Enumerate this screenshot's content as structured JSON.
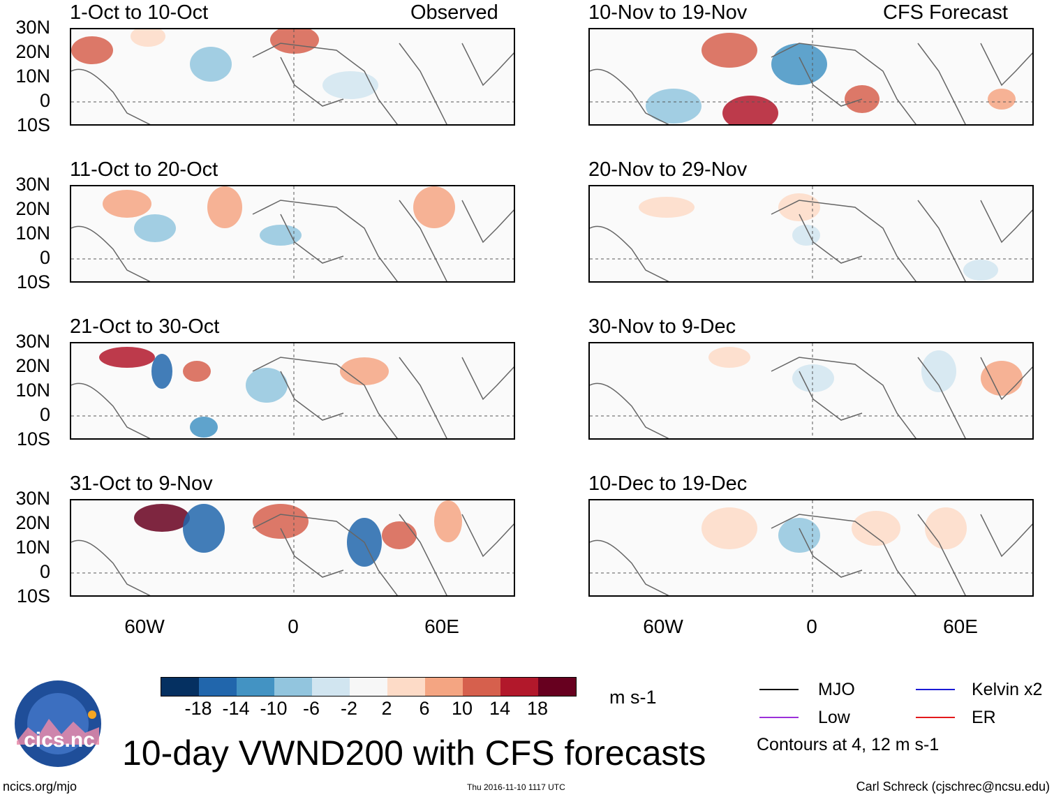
{
  "title": "10-day VWND200 with CFS forecasts",
  "left_column_label": "Observed",
  "right_column_label": "CFS Forecast",
  "panels_left": [
    {
      "period": "1-Oct to 10-Oct"
    },
    {
      "period": "11-Oct to 20-Oct"
    },
    {
      "period": "21-Oct to 30-Oct"
    },
    {
      "period": "31-Oct to 9-Nov"
    }
  ],
  "panels_right": [
    {
      "period": "10-Nov to 19-Nov"
    },
    {
      "period": "20-Nov to 29-Nov"
    },
    {
      "period": "30-Nov to 9-Dec"
    },
    {
      "period": "10-Dec to 19-Dec"
    }
  ],
  "y_ticks": [
    "30N",
    "20N",
    "10N",
    "0",
    "10S"
  ],
  "x_ticks": [
    "60W",
    "0",
    "60E"
  ],
  "colorbar": {
    "units": "m s-1",
    "labels": [
      "-18",
      "-14",
      "-10",
      "-6",
      "-2",
      "2",
      "6",
      "10",
      "14",
      "18"
    ],
    "colors": [
      "#053061",
      "#2166ac",
      "#4393c3",
      "#92c5de",
      "#d1e5f0",
      "#f7f7f7",
      "#fddbc7",
      "#f4a582",
      "#d6604d",
      "#b2182b",
      "#67001f"
    ]
  },
  "legend": {
    "items": [
      {
        "label": "MJO",
        "color": "#000000"
      },
      {
        "label": "Kelvin x2",
        "color": "#1a1ad6"
      },
      {
        "label": "Low",
        "color": "#9b30d9"
      },
      {
        "label": "ER",
        "color": "#e31a1c"
      }
    ],
    "note": "Contours at 4, 12 m s-1"
  },
  "logo": {
    "text": "cics.nc",
    "ring_text": "Cooperative Institute for Climate and Satellites"
  },
  "footer": {
    "url": "ncics.org/mjo",
    "timestamp": "Thu 2016-11-10 1117 UTC",
    "author": "Carl Schreck (cjschrec@ncsu.edu)"
  }
}
